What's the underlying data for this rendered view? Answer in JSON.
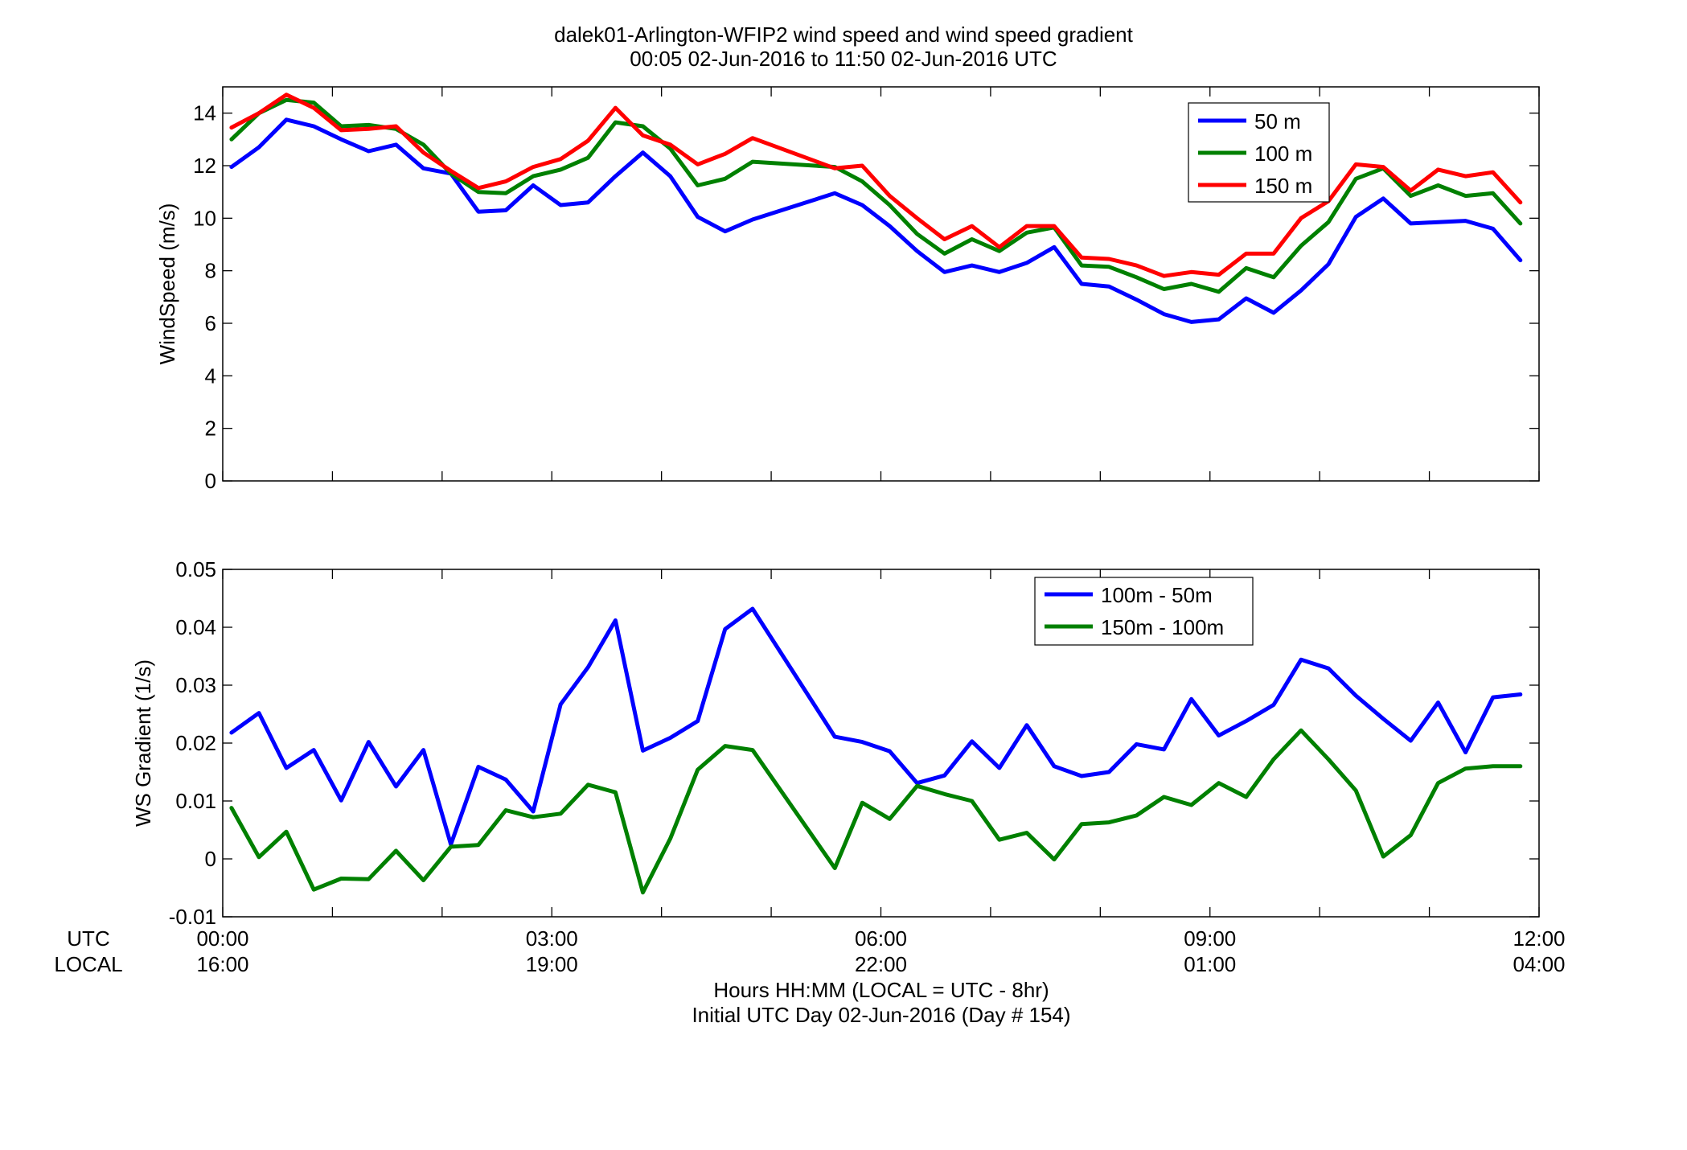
{
  "figure": {
    "title_line1": "dalek01-Arlington-WFIP2  wind speed and wind speed gradient",
    "title_line2": "00:05 02-Jun-2016 to 11:50 02-Jun-2016  UTC",
    "row_label_utc": "UTC",
    "row_label_local": "LOCAL",
    "xlabel_line1": "Hours HH:MM  (LOCAL = UTC - 8hr)",
    "xlabel_line2": "Initial UTC Day 02-Jun-2016 (Day # 154)",
    "x_ticks_utc": [
      "00:00",
      "03:00",
      "06:00",
      "09:00",
      "12:00"
    ],
    "x_ticks_local": [
      "16:00",
      "19:00",
      "22:00",
      "01:00",
      "04:00"
    ]
  },
  "chart_data": [
    {
      "type": "line",
      "title": "",
      "xlabel": "",
      "ylabel": "WindSpeed (m/s)",
      "xlim": [
        0,
        12
      ],
      "ylim": [
        0,
        15
      ],
      "yticks": [
        0,
        2,
        4,
        6,
        8,
        10,
        12,
        14
      ],
      "grid": false,
      "legend_position": "top-right",
      "x": [
        0.08,
        0.33,
        0.58,
        0.83,
        1.08,
        1.33,
        1.58,
        1.83,
        2.08,
        2.33,
        2.58,
        2.83,
        3.08,
        3.33,
        3.58,
        3.83,
        4.08,
        4.33,
        4.58,
        4.83,
        5.58,
        5.83,
        6.08,
        6.33,
        6.58,
        6.83,
        7.08,
        7.33,
        7.58,
        7.83,
        8.08,
        8.33,
        8.58,
        8.83,
        9.08,
        9.33,
        9.58,
        9.83,
        10.08,
        10.33,
        10.58,
        10.83,
        11.08,
        11.33,
        11.58,
        11.83
      ],
      "series": [
        {
          "name": "50 m",
          "color": "#0000ff",
          "values": [
            11.95,
            12.7,
            13.75,
            13.5,
            13.0,
            12.55,
            12.8,
            11.9,
            11.7,
            10.25,
            10.3,
            11.25,
            10.5,
            10.6,
            11.6,
            12.5,
            11.6,
            10.05,
            9.5,
            9.95,
            10.95,
            10.5,
            9.7,
            8.75,
            7.95,
            8.2,
            7.95,
            8.3,
            8.9,
            7.5,
            7.4,
            6.9,
            6.35,
            6.05,
            6.15,
            6.95,
            6.4,
            7.25,
            8.25,
            10.05,
            10.75,
            9.8,
            9.85,
            9.9,
            9.6,
            8.4
          ]
        },
        {
          "name": "100 m",
          "color": "#008000",
          "values": [
            13.0,
            14.0,
            14.5,
            14.4,
            13.5,
            13.55,
            13.4,
            12.8,
            11.7,
            11.0,
            10.95,
            11.6,
            11.85,
            12.3,
            13.65,
            13.5,
            12.65,
            11.25,
            11.5,
            12.15,
            11.95,
            11.4,
            10.5,
            9.4,
            8.65,
            9.2,
            8.75,
            9.45,
            9.65,
            8.2,
            8.15,
            7.75,
            7.3,
            7.5,
            7.2,
            8.1,
            7.75,
            8.95,
            9.85,
            11.5,
            11.9,
            10.85,
            11.25,
            10.85,
            10.95,
            9.8
          ]
        },
        {
          "name": "150 m",
          "color": "#ff0000",
          "values": [
            13.45,
            14.0,
            14.7,
            14.2,
            13.35,
            13.4,
            13.5,
            12.5,
            11.8,
            11.15,
            11.4,
            11.95,
            12.25,
            12.95,
            14.2,
            13.15,
            12.8,
            12.05,
            12.45,
            13.05,
            11.9,
            12.0,
            10.85,
            10.0,
            9.2,
            9.7,
            8.9,
            9.7,
            9.7,
            8.5,
            8.45,
            8.2,
            7.8,
            7.95,
            7.85,
            8.65,
            8.65,
            10.0,
            10.65,
            12.05,
            11.95,
            11.05,
            11.85,
            11.6,
            11.75,
            10.6
          ]
        }
      ]
    },
    {
      "type": "line",
      "title": "",
      "xlabel": "",
      "ylabel": "WS Gradient (1/s)",
      "xlim": [
        0,
        12
      ],
      "ylim": [
        -0.01,
        0.05
      ],
      "yticks": [
        -0.01,
        0,
        0.01,
        0.02,
        0.03,
        0.04,
        0.05
      ],
      "ytick_labels": [
        "-0.01",
        "0",
        "0.01",
        "0.02",
        "0.03",
        "0.04",
        "0.05"
      ],
      "grid": false,
      "legend_position": "top-right",
      "x": [
        0.08,
        0.33,
        0.58,
        0.83,
        1.08,
        1.33,
        1.58,
        1.83,
        2.08,
        2.33,
        2.58,
        2.83,
        3.08,
        3.33,
        3.58,
        3.83,
        4.08,
        4.33,
        4.58,
        4.83,
        5.58,
        5.83,
        6.08,
        6.33,
        6.58,
        6.83,
        7.08,
        7.33,
        7.58,
        7.83,
        8.08,
        8.33,
        8.58,
        8.83,
        9.08,
        9.33,
        9.58,
        9.83,
        10.08,
        10.33,
        10.58,
        10.83,
        11.08,
        11.33,
        11.58,
        11.83
      ],
      "series": [
        {
          "name": "100m - 50m",
          "color": "#0000ff",
          "values": [
            0.0218,
            0.0252,
            0.0157,
            0.0188,
            0.0101,
            0.0202,
            0.0125,
            0.0188,
            0.0025,
            0.0159,
            0.0137,
            0.0082,
            0.0267,
            0.0331,
            0.0412,
            0.0187,
            0.0209,
            0.0238,
            0.0397,
            0.0432,
            0.0211,
            0.0202,
            0.0186,
            0.0131,
            0.0144,
            0.0203,
            0.0157,
            0.0231,
            0.016,
            0.0143,
            0.015,
            0.0198,
            0.0189,
            0.0276,
            0.0213,
            0.0238,
            0.0266,
            0.0344,
            0.0329,
            0.0282,
            0.0242,
            0.0204,
            0.027,
            0.0184,
            0.0279,
            0.0284
          ]
        },
        {
          "name": "150m - 100m",
          "color": "#008000",
          "values": [
            0.0088,
            0.0003,
            0.0047,
            -0.0053,
            -0.0034,
            -0.0035,
            0.0014,
            -0.0037,
            0.0021,
            0.0024,
            0.0084,
            0.0072,
            0.0078,
            0.0128,
            0.0115,
            -0.0058,
            0.0035,
            0.0154,
            0.0195,
            0.0188,
            -0.0016,
            0.0097,
            0.0069,
            0.0126,
            0.0112,
            0.01,
            0.0033,
            0.0045,
            -0.0001,
            0.006,
            0.0063,
            0.0075,
            0.0107,
            0.0093,
            0.0131,
            0.0107,
            0.0172,
            0.0222,
            0.0172,
            0.0118,
            0.0004,
            0.0041,
            0.0131,
            0.0156,
            0.016,
            0.016
          ]
        }
      ]
    }
  ]
}
